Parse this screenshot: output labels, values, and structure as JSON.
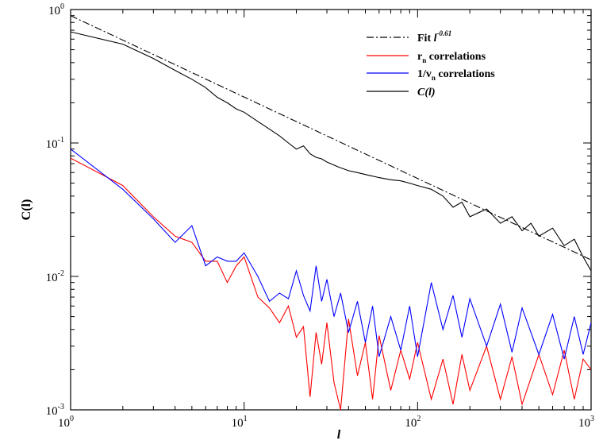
{
  "chart_data": {
    "type": "line",
    "xscale": "log",
    "yscale": "log",
    "xlim": [
      1,
      1000
    ],
    "ylim": [
      0.001,
      1
    ],
    "xlabel": "l",
    "ylabel": "C(l)",
    "x_ticks": [
      {
        "base": "10",
        "exp": "0",
        "value": 1
      },
      {
        "base": "10",
        "exp": "1",
        "value": 10
      },
      {
        "base": "10",
        "exp": "2",
        "value": 100
      },
      {
        "base": "10",
        "exp": "3",
        "value": 1000
      }
    ],
    "y_ticks": [
      {
        "base": "10",
        "exp": "0",
        "value": 1
      },
      {
        "base": "10",
        "exp": "-1",
        "value": 0.1
      },
      {
        "base": "10",
        "exp": "-2",
        "value": 0.01
      },
      {
        "base": "10",
        "exp": "-3",
        "value": 0.001
      }
    ],
    "grid": false,
    "legend_position": "top-right",
    "series": [
      {
        "name": "Fit l^-0.61",
        "legend_main": "Fit ",
        "legend_var": "l",
        "legend_sup": "-0.61",
        "color": "#000000",
        "style": "dashdot",
        "x": [
          1,
          1000
        ],
        "y": [
          0.9,
          0.0133
        ]
      },
      {
        "name": "rn correlations",
        "legend_main": "r",
        "legend_sub": "n",
        "legend_rest": " correlations",
        "color": "#ff0000",
        "style": "solid",
        "x": [
          1,
          2,
          3,
          4,
          5,
          6,
          7,
          8,
          9,
          10,
          12,
          14,
          16,
          18,
          20,
          22,
          24,
          26,
          28,
          30,
          33,
          36,
          40,
          45,
          50,
          55,
          60,
          70,
          80,
          90,
          100,
          120,
          140,
          160,
          180,
          200,
          250,
          300,
          350,
          400,
          500,
          600,
          700,
          800,
          900,
          1000
        ],
        "y": [
          0.077,
          0.048,
          0.028,
          0.02,
          0.018,
          0.013,
          0.013,
          0.009,
          0.012,
          0.014,
          0.007,
          0.0058,
          0.0045,
          0.006,
          0.0035,
          0.0042,
          0.00125,
          0.0038,
          0.0022,
          0.0045,
          0.0016,
          0.001,
          0.0048,
          0.0018,
          0.0032,
          0.0012,
          0.0036,
          0.0014,
          0.0028,
          0.0017,
          0.0032,
          0.0012,
          0.0024,
          0.0011,
          0.0026,
          0.0014,
          0.003,
          0.0012,
          0.0025,
          0.0011,
          0.0026,
          0.0013,
          0.0028,
          0.0012,
          0.0024,
          0.002
        ]
      },
      {
        "name": "1/vn correlations",
        "legend_main": "1/v",
        "legend_sub": "n",
        "legend_rest": " correlations",
        "color": "#0000ff",
        "style": "solid",
        "x": [
          1,
          2,
          3,
          4,
          5,
          6,
          7,
          8,
          9,
          10,
          12,
          14,
          16,
          18,
          20,
          22,
          24,
          26,
          28,
          30,
          33,
          36,
          40,
          45,
          50,
          55,
          60,
          70,
          80,
          90,
          100,
          120,
          140,
          160,
          180,
          200,
          250,
          300,
          350,
          400,
          500,
          600,
          700,
          800,
          900,
          1000
        ],
        "y": [
          0.09,
          0.045,
          0.027,
          0.018,
          0.024,
          0.012,
          0.014,
          0.013,
          0.013,
          0.015,
          0.01,
          0.0065,
          0.0075,
          0.0068,
          0.011,
          0.0072,
          0.0055,
          0.012,
          0.0065,
          0.0095,
          0.005,
          0.0075,
          0.0038,
          0.0065,
          0.0032,
          0.006,
          0.0025,
          0.005,
          0.0028,
          0.006,
          0.0025,
          0.009,
          0.004,
          0.0072,
          0.0035,
          0.0068,
          0.003,
          0.0062,
          0.0027,
          0.0058,
          0.0026,
          0.0052,
          0.0024,
          0.005,
          0.0026,
          0.0045
        ]
      },
      {
        "name": "C(l)",
        "legend_main": "C(l)",
        "color": "#000000",
        "style": "solid",
        "x": [
          1,
          2,
          3,
          4,
          5,
          6,
          7,
          8,
          9,
          10,
          12,
          14,
          16,
          18,
          20,
          22,
          24,
          26,
          28,
          30,
          35,
          40,
          45,
          50,
          60,
          70,
          80,
          90,
          100,
          120,
          140,
          160,
          180,
          200,
          250,
          300,
          350,
          400,
          450,
          500,
          600,
          700,
          800,
          900,
          1000
        ],
        "y": [
          0.68,
          0.55,
          0.43,
          0.35,
          0.3,
          0.26,
          0.22,
          0.2,
          0.18,
          0.17,
          0.145,
          0.127,
          0.113,
          0.1,
          0.09,
          0.095,
          0.083,
          0.078,
          0.076,
          0.072,
          0.066,
          0.062,
          0.06,
          0.058,
          0.055,
          0.053,
          0.052,
          0.05,
          0.048,
          0.045,
          0.04,
          0.033,
          0.036,
          0.028,
          0.032,
          0.025,
          0.028,
          0.022,
          0.025,
          0.02,
          0.023,
          0.017,
          0.019,
          0.014,
          0.011
        ]
      }
    ]
  }
}
